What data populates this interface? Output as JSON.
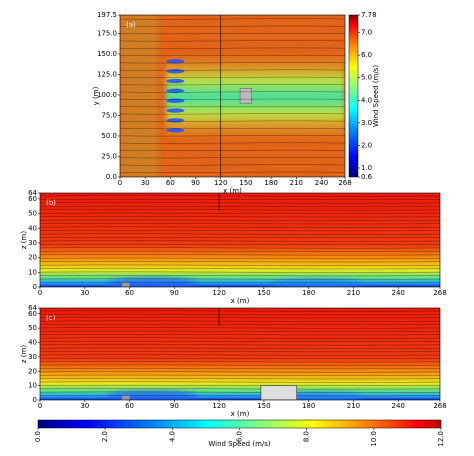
{
  "chart_data": [
    {
      "type": "heatmap",
      "panel_label": "(a)",
      "xlabel": "x (m)",
      "ylabel": "y (m)",
      "xlim": [
        0,
        268
      ],
      "xticks": [
        0,
        30,
        60,
        90,
        120,
        150,
        180,
        210,
        240,
        268
      ],
      "ylim": [
        0,
        197.5
      ],
      "yticks": [
        {
          "value": 0,
          "label": "0.0"
        },
        {
          "value": 25,
          "label": "25.0"
        },
        {
          "value": 50,
          "label": "50.0"
        },
        {
          "value": 75,
          "label": "75.0"
        },
        {
          "value": 100,
          "label": "100.0"
        },
        {
          "value": 125,
          "label": "125.0"
        },
        {
          "value": 150,
          "label": "150.0"
        },
        {
          "value": 175,
          "label": "175.0"
        },
        197.5
      ],
      "colorbar": {
        "label": "Wind Speed (m/s)",
        "lim": [
          0.6,
          7.78
        ],
        "ticks": [
          0.6,
          {
            "value": 1,
            "label": "1.0"
          },
          {
            "value": 2,
            "label": "2.0"
          },
          {
            "value": 3,
            "label": "3.0"
          },
          {
            "value": 4,
            "label": "4.0"
          },
          {
            "value": 5,
            "label": "5.0"
          },
          {
            "value": 6,
            "label": "6.0"
          },
          {
            "value": 7,
            "label": "7.0"
          },
          7.78
        ]
      }
    },
    {
      "type": "heatmap",
      "panel_label": "(b)",
      "xlabel": "x (m)",
      "ylabel": "z (m)",
      "xlim": [
        0,
        268
      ],
      "xticks": [
        0,
        30,
        60,
        90,
        120,
        150,
        180,
        210,
        240,
        268
      ],
      "ylim": [
        0,
        64
      ],
      "yticks": [
        0,
        10,
        20,
        30,
        40,
        50,
        60,
        64
      ]
    },
    {
      "type": "heatmap",
      "panel_label": "(c)",
      "xlabel": "x (m)",
      "ylabel": "z (m)",
      "xlim": [
        0,
        268
      ],
      "xticks": [
        0,
        30,
        60,
        90,
        120,
        150,
        180,
        210,
        240,
        268
      ],
      "ylim": [
        0,
        64
      ],
      "yticks": [
        0,
        10,
        20,
        30,
        40,
        50,
        60,
        64
      ]
    },
    {
      "type": "colorbar",
      "label": "Wind Speed (m/s)",
      "lim": [
        0,
        12
      ],
      "ticks": [
        {
          "value": 0,
          "label": "0.0"
        },
        {
          "value": 2,
          "label": "2.0"
        },
        {
          "value": 4,
          "label": "4.0"
        },
        {
          "value": 6,
          "label": "6.0"
        },
        {
          "value": 8,
          "label": "8.0"
        },
        {
          "value": 10,
          "label": "10.0"
        },
        {
          "value": 12,
          "label": "12.0"
        }
      ]
    }
  ]
}
